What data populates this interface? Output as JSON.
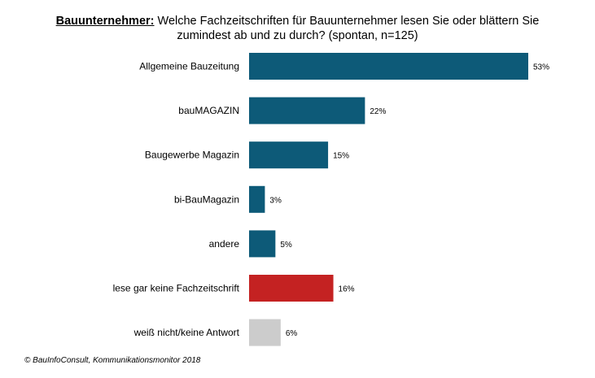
{
  "title": {
    "prefix": "Bauunternehmer:",
    "line1": "Welche Fachzeitschriften für Bauunternehmer lesen Sie oder blättern Sie",
    "line2": "zumindest ab und zu durch? (spontan, n=125)"
  },
  "source": "© BauInfoConsult, Kommunikationsmonitor 2018",
  "chart_data": {
    "type": "bar",
    "orientation": "horizontal",
    "title": "Bauunternehmer: Welche Fachzeitschriften für Bauunternehmer lesen Sie oder blättern Sie zumindest ab und zu durch? (spontan, n=125)",
    "categories": [
      "Allgemeine Bauzeitung",
      "bauMAGAZIN",
      "Baugewerbe Magazin",
      "bi-BauMagazin",
      "andere",
      "lese gar keine Fachzeitschrift",
      "weiß nicht/keine Antwort"
    ],
    "values": [
      53,
      22,
      15,
      3,
      5,
      16,
      6
    ],
    "labels": [
      "53%",
      "22%",
      "15%",
      "3%",
      "5%",
      "16%",
      "6%"
    ],
    "colors": [
      "#0d5a78",
      "#0d5a78",
      "#0d5a78",
      "#0d5a78",
      "#0d5a78",
      "#c42222",
      "#cccccc"
    ],
    "unit": "%",
    "xlim": [
      0,
      53
    ],
    "grid": false,
    "legend": "none"
  }
}
